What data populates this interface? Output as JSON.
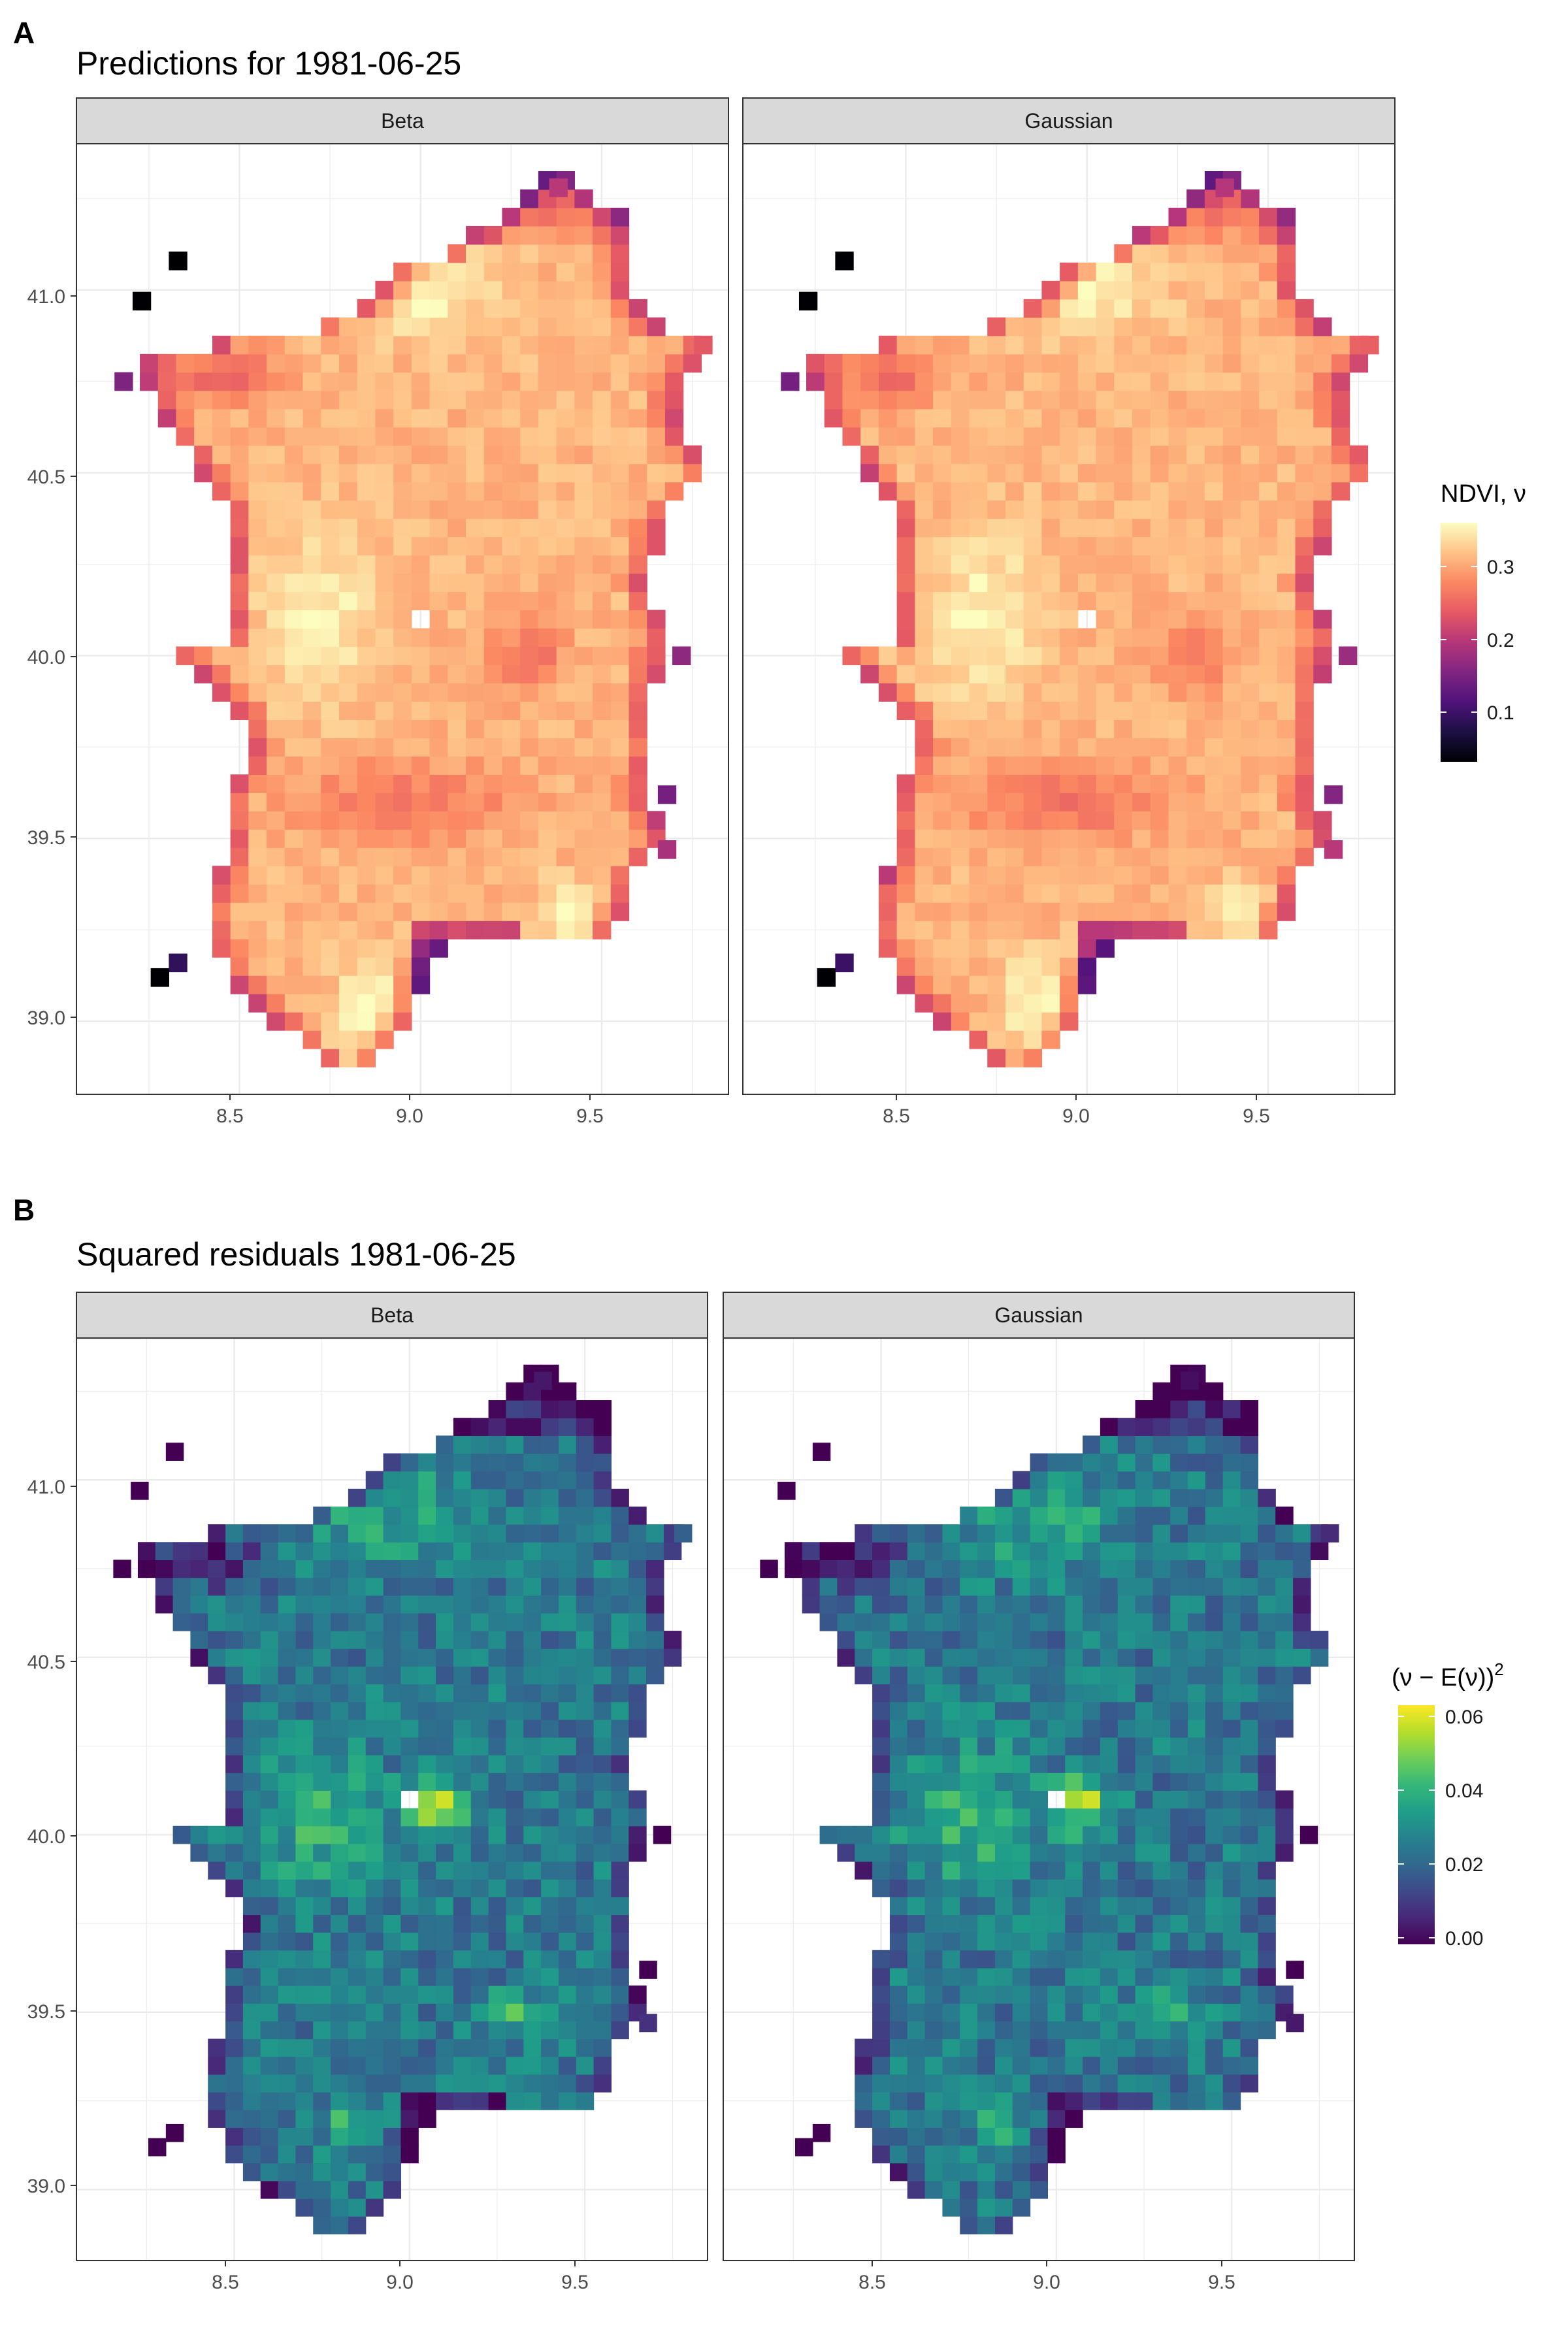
{
  "chart_data": [
    {
      "panel_letter": "A",
      "title": "Predictions for 1981-06-25",
      "type": "heatmap",
      "facets": [
        "Beta",
        "Gaussian"
      ],
      "x_ticks": [
        "8.5",
        "9.0",
        "9.5"
      ],
      "x_tick_values": [
        8.5,
        9.0,
        9.5
      ],
      "y_ticks": [
        "39.0",
        "39.5",
        "40.0",
        "40.5",
        "41.0"
      ],
      "y_tick_values": [
        39.0,
        39.5,
        40.0,
        40.5,
        41.0
      ],
      "xlim": [
        8.05,
        9.85
      ],
      "ylim": [
        38.8,
        41.4
      ],
      "grid": true,
      "legend": {
        "title": "NDVI, ν",
        "placement": "right",
        "ticks": [
          "0.1",
          "0.2",
          "0.3"
        ],
        "tick_values": [
          0.1,
          0.2,
          0.3
        ],
        "range": [
          0.02,
          0.35
        ],
        "colormap": "magma",
        "colors": [
          "#000004",
          "#1c1044",
          "#4f127b",
          "#812581",
          "#b5367a",
          "#e55964",
          "#fb8761",
          "#fec287",
          "#fcfdbf"
        ]
      }
    },
    {
      "panel_letter": "B",
      "title": "Squared residuals 1981-06-25",
      "type": "heatmap",
      "facets": [
        "Beta",
        "Gaussian"
      ],
      "x_ticks": [
        "8.5",
        "9.0",
        "9.5"
      ],
      "x_tick_values": [
        8.5,
        9.0,
        9.5
      ],
      "y_ticks": [
        "39.0",
        "39.5",
        "40.0",
        "40.5",
        "41.0"
      ],
      "y_tick_values": [
        39.0,
        39.5,
        40.0,
        40.5,
        41.0
      ],
      "xlim": [
        8.05,
        9.85
      ],
      "ylim": [
        38.8,
        41.4
      ],
      "grid": true,
      "legend": {
        "title_main": "(ν − E(ν))",
        "title_sup": "2",
        "placement": "right",
        "ticks": [
          "0.00",
          "0.02",
          "0.04",
          "0.06"
        ],
        "tick_values": [
          0.0,
          0.02,
          0.04,
          0.06
        ],
        "range": [
          0.0,
          0.063
        ],
        "colormap": "viridis",
        "colors": [
          "#440154",
          "#482878",
          "#3e4989",
          "#31688e",
          "#26828e",
          "#1f9e89",
          "#35b779",
          "#6ece58",
          "#b5de2b",
          "#fde725"
        ]
      }
    }
  ]
}
